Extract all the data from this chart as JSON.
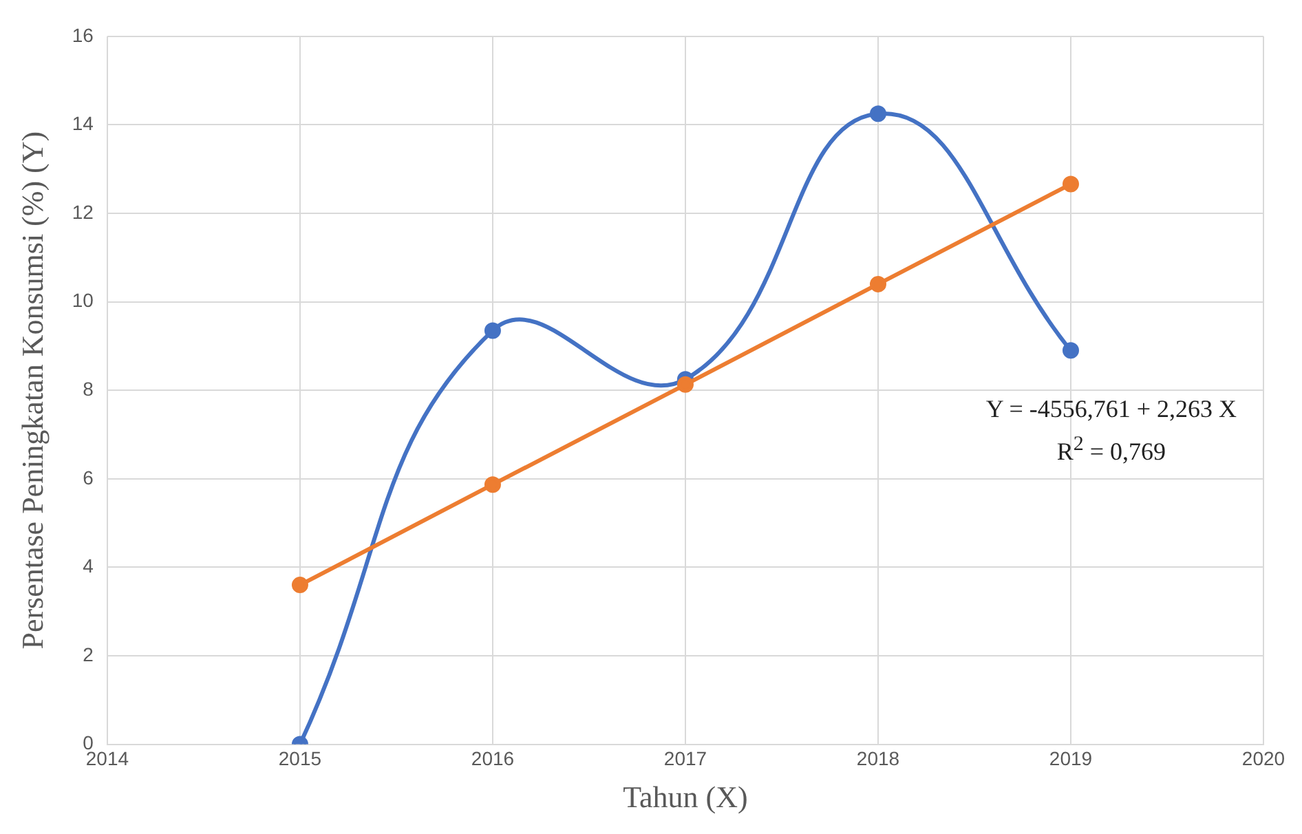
{
  "chart_data": {
    "type": "line",
    "xlabel": "Tahun (X)",
    "ylabel": "Persentase Peningkatan Konsumsi (%) (Y)",
    "x": [
      2015,
      2016,
      2017,
      2018,
      2019
    ],
    "series": [
      {
        "color": "#4472c4",
        "values": [
          0,
          9.35,
          8.25,
          14.25,
          8.9
        ]
      },
      {
        "color": "#ed7d31",
        "values": [
          3.6,
          5.87,
          8.13,
          10.4,
          12.66
        ]
      }
    ],
    "xlim": [
      2014,
      2020
    ],
    "xticks": [
      2014,
      2015,
      2016,
      2017,
      2018,
      2019,
      2020
    ],
    "ylim": [
      0,
      16
    ],
    "yticks": [
      0,
      2,
      4,
      6,
      8,
      10,
      12,
      14,
      16
    ],
    "grid": true,
    "legend": false,
    "marker": "circle",
    "line_style": "solid",
    "annotations": [
      "Y = -4556,761 + 2,263 X",
      "R$^{2}$ = 0,769"
    ]
  }
}
